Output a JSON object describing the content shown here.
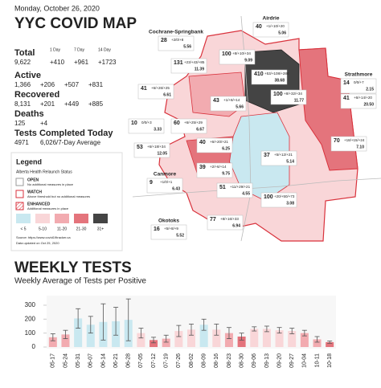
{
  "header": {
    "date": "Monday, October 26, 2020",
    "title": "YYC COVID MAP"
  },
  "stats": {
    "columns": [
      "1 Day",
      "7 Day",
      "14 Day"
    ],
    "rows": [
      {
        "label": "Total",
        "value": "9,622",
        "changes": [
          "+410",
          "+961",
          "+1723"
        ]
      },
      {
        "label": "Active",
        "value": "1,366",
        "changes": [
          "+206",
          "+507",
          "+831"
        ]
      },
      {
        "label": "Recovered",
        "value": "8,131",
        "changes": [
          "+201",
          "+449",
          "+885"
        ]
      },
      {
        "label": "Deaths",
        "value": "125",
        "changes": [
          "+4"
        ]
      }
    ],
    "tests_label": "Tests Completed Today",
    "tests_value": "4971",
    "tests_average": "6,026/7-Day Average"
  },
  "legend": {
    "title": "Legend",
    "subtitle": "Alberta Health Relaunch Status",
    "statuses": [
      {
        "label": "OPEN",
        "note": "No additional measures in place"
      },
      {
        "label": "WATCH",
        "note": "Above threshold but no additional measures"
      },
      {
        "label": "ENHANCED",
        "note": "Additional measures in place"
      }
    ],
    "scale": [
      {
        "label": "< 5",
        "color": "#c9e8f0"
      },
      {
        "label": "5-10",
        "color": "#f9d6d8"
      },
      {
        "label": "11-20",
        "color": "#f2abb0"
      },
      {
        "label": "21-30",
        "color": "#e4747c"
      },
      {
        "label": "31+",
        "color": "#444444"
      }
    ],
    "source": "Source: https://www.covid19tracker.ca",
    "updated": "Data updated on Oct 25, 2020"
  },
  "map": {
    "areas": [
      {
        "name": "Cochrane-Springbank",
        "cases": "28",
        "change": "+2/0/+8",
        "rate": "5.56"
      },
      {
        "name": "Airdrie",
        "cases": "40",
        "change": "+1/+10/+20",
        "rate": "5.06"
      },
      {
        "cases": "100",
        "change": "+8/+10/+34",
        "rate": "9.09"
      },
      {
        "cases": "131",
        "change": "+23/+43/+85",
        "rate": "11.39"
      },
      {
        "cases": "410",
        "change": "+53/+108/+280",
        "rate": "38.68"
      },
      {
        "name": "Strathmore",
        "cases": "14",
        "change": "0/0/+7",
        "rate": "2.15"
      },
      {
        "cases": "41",
        "change": "+6/+14/+20",
        "rate": "20.50"
      },
      {
        "cases": "41",
        "change": "+6/+26/+25",
        "rate": "6.61"
      },
      {
        "cases": "43",
        "change": "+1/+8/+14",
        "rate": "5.66"
      },
      {
        "cases": "100",
        "change": "+8/+32/+34",
        "rate": "11.77"
      },
      {
        "cases": "10",
        "change": "0/0/+3",
        "rate": "3.33"
      },
      {
        "cases": "60",
        "change": "+6/+25/+29",
        "rate": "6.67"
      },
      {
        "cases": "40",
        "change": "+6/+20/+21",
        "rate": "6.25"
      },
      {
        "cases": "53",
        "change": "+6/+18/+34",
        "rate": "12.05"
      },
      {
        "cases": "39",
        "change": "+2/+6/+14",
        "rate": "9.75"
      },
      {
        "cases": "70",
        "change": "+18/+15/+24",
        "rate": "7.10"
      },
      {
        "cases": "37",
        "change": "+5/+12/+21",
        "rate": "5.14"
      },
      {
        "name": "Canmore",
        "cases": "9",
        "change": "+1/0/+1",
        "rate": "6.43"
      },
      {
        "cases": "51",
        "change": "+11/+29/+21",
        "rate": "4.55"
      },
      {
        "cases": "100",
        "change": "+20/+50/+73",
        "rate": "3.08"
      },
      {
        "cases": "77",
        "change": "+8/+16/+33",
        "rate": "6.94"
      },
      {
        "name": "Okotoks",
        "cases": "16",
        "change": "+5/+8/+9",
        "rate": "5.52"
      }
    ]
  },
  "chart_data": {
    "type": "bar",
    "title": "WEEKLY TESTS",
    "subtitle": "Weekly Average of Tests per Positive",
    "categories": [
      "05-17",
      "05-24",
      "05-31",
      "06-07",
      "06-14",
      "06-21",
      "06-28",
      "07-05",
      "07-12",
      "07-19",
      "07-26",
      "08-02",
      "08-09",
      "08-16",
      "08-23",
      "08-30",
      "09-06",
      "09-13",
      "09-20",
      "09-27",
      "10-04",
      "10-11",
      "10-18"
    ],
    "values": [
      70,
      90,
      205,
      160,
      180,
      185,
      195,
      100,
      50,
      60,
      115,
      125,
      160,
      125,
      100,
      75,
      130,
      130,
      120,
      115,
      100,
      55,
      35
    ],
    "errors": [
      25,
      30,
      70,
      60,
      130,
      100,
      150,
      35,
      20,
      25,
      40,
      40,
      40,
      40,
      40,
      25,
      15,
      20,
      20,
      20,
      20,
      20,
      8
    ],
    "colors": [
      "#f2abb0",
      "#f2abb0",
      "#c9e8f0",
      "#c9e8f0",
      "#c9e8f0",
      "#c9e8f0",
      "#c9e8f0",
      "#f9d6d8",
      "#e4747c",
      "#f2abb0",
      "#f9d6d8",
      "#f9d6d8",
      "#c9e8f0",
      "#f9d6d8",
      "#f2abb0",
      "#e4747c",
      "#f9d6d8",
      "#f9d6d8",
      "#f9d6d8",
      "#f9d6d8",
      "#f2abb0",
      "#f2abb0",
      "#e4747c"
    ],
    "error_color": "#555555",
    "ylim": [
      0,
      340
    ],
    "yticks": [
      0,
      100,
      200,
      300
    ],
    "grid": false
  }
}
